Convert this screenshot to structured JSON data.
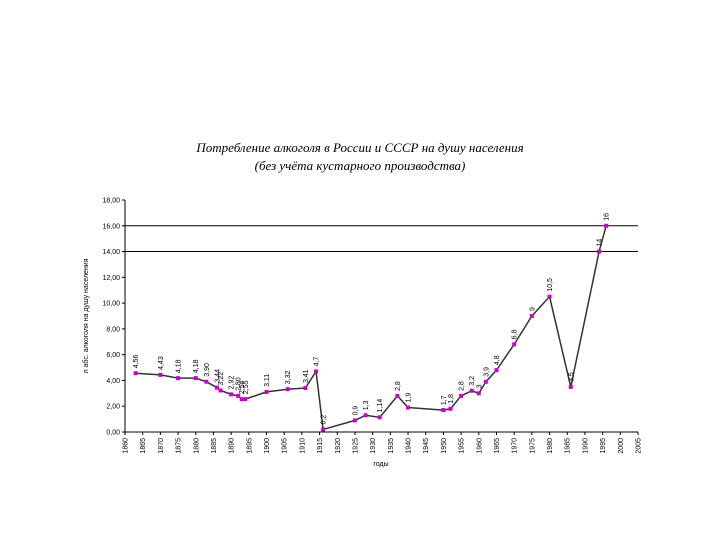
{
  "chart_data": {
    "type": "line",
    "title": "Потребление алкоголя в России и СССР на душу населения",
    "subtitle": "(без учёта кустарного производства)",
    "x_label": "годы",
    "y_label": "л абс. алкоголя на душу населения",
    "x": [
      1863,
      1870,
      1875,
      1880,
      1883,
      1886,
      1887,
      1890,
      1892,
      1893,
      1894,
      1900,
      1906,
      1911,
      1914,
      1916,
      1925,
      1928,
      1932,
      1937,
      1940,
      1950,
      1952,
      1955,
      1958,
      1960,
      1962,
      1965,
      1970,
      1975,
      1980,
      1986,
      1994,
      1996
    ],
    "series": [
      {
        "color": "#333333",
        "marker_color": "#cc00cc",
        "values": [
          4.56,
          4.43,
          4.18,
          4.18,
          3.9,
          3.44,
          3.22,
          2.92,
          2.8,
          2.54,
          2.55,
          3.11,
          3.32,
          3.41,
          4.7,
          0.2,
          0.9,
          1.3,
          1.14,
          2.8,
          1.9,
          1.7,
          1.8,
          2.8,
          3.2,
          3,
          3.9,
          4.8,
          6.8,
          9,
          10.5,
          3.5,
          14,
          16
        ],
        "value_labels": [
          "4,56",
          "4,43",
          "4,18",
          "4,18",
          "3,90",
          "3,44",
          "3,22",
          "2,92",
          "2,80",
          "2,54",
          "2,55",
          "3,11",
          "3,32",
          "3,41",
          "4,7",
          "0,2",
          "0,9",
          "1,3",
          "1,14",
          "2,8",
          "1,9",
          "1,7",
          "1,8",
          "2,8",
          "3,2",
          "3",
          "3,9",
          "4,8",
          "6,8",
          "9",
          "10,5",
          "3,5",
          "14",
          "16"
        ]
      }
    ],
    "xlim": [
      1860,
      2005
    ],
    "xticks": [
      1860,
      1865,
      1870,
      1875,
      1880,
      1885,
      1890,
      1895,
      1900,
      1905,
      1910,
      1915,
      1920,
      1925,
      1930,
      1935,
      1940,
      1945,
      1950,
      1955,
      1960,
      1965,
      1970,
      1975,
      1980,
      1985,
      1990,
      1995,
      2000,
      2005
    ],
    "ylim": [
      0,
      18
    ],
    "yticks": [
      {
        "value": 0,
        "label": "0,00"
      },
      {
        "value": 2,
        "label": "2,00"
      },
      {
        "value": 4,
        "label": "4,00"
      },
      {
        "value": 6,
        "label": "6,00"
      },
      {
        "value": 8,
        "label": "8,00"
      },
      {
        "value": 10,
        "label": "10,00"
      },
      {
        "value": 12,
        "label": "12,00"
      },
      {
        "value": 14,
        "label": "14,00"
      },
      {
        "value": 16,
        "label": "16,00"
      },
      {
        "value": 18,
        "label": "18,00"
      }
    ],
    "reference_lines": [
      14,
      16
    ]
  }
}
